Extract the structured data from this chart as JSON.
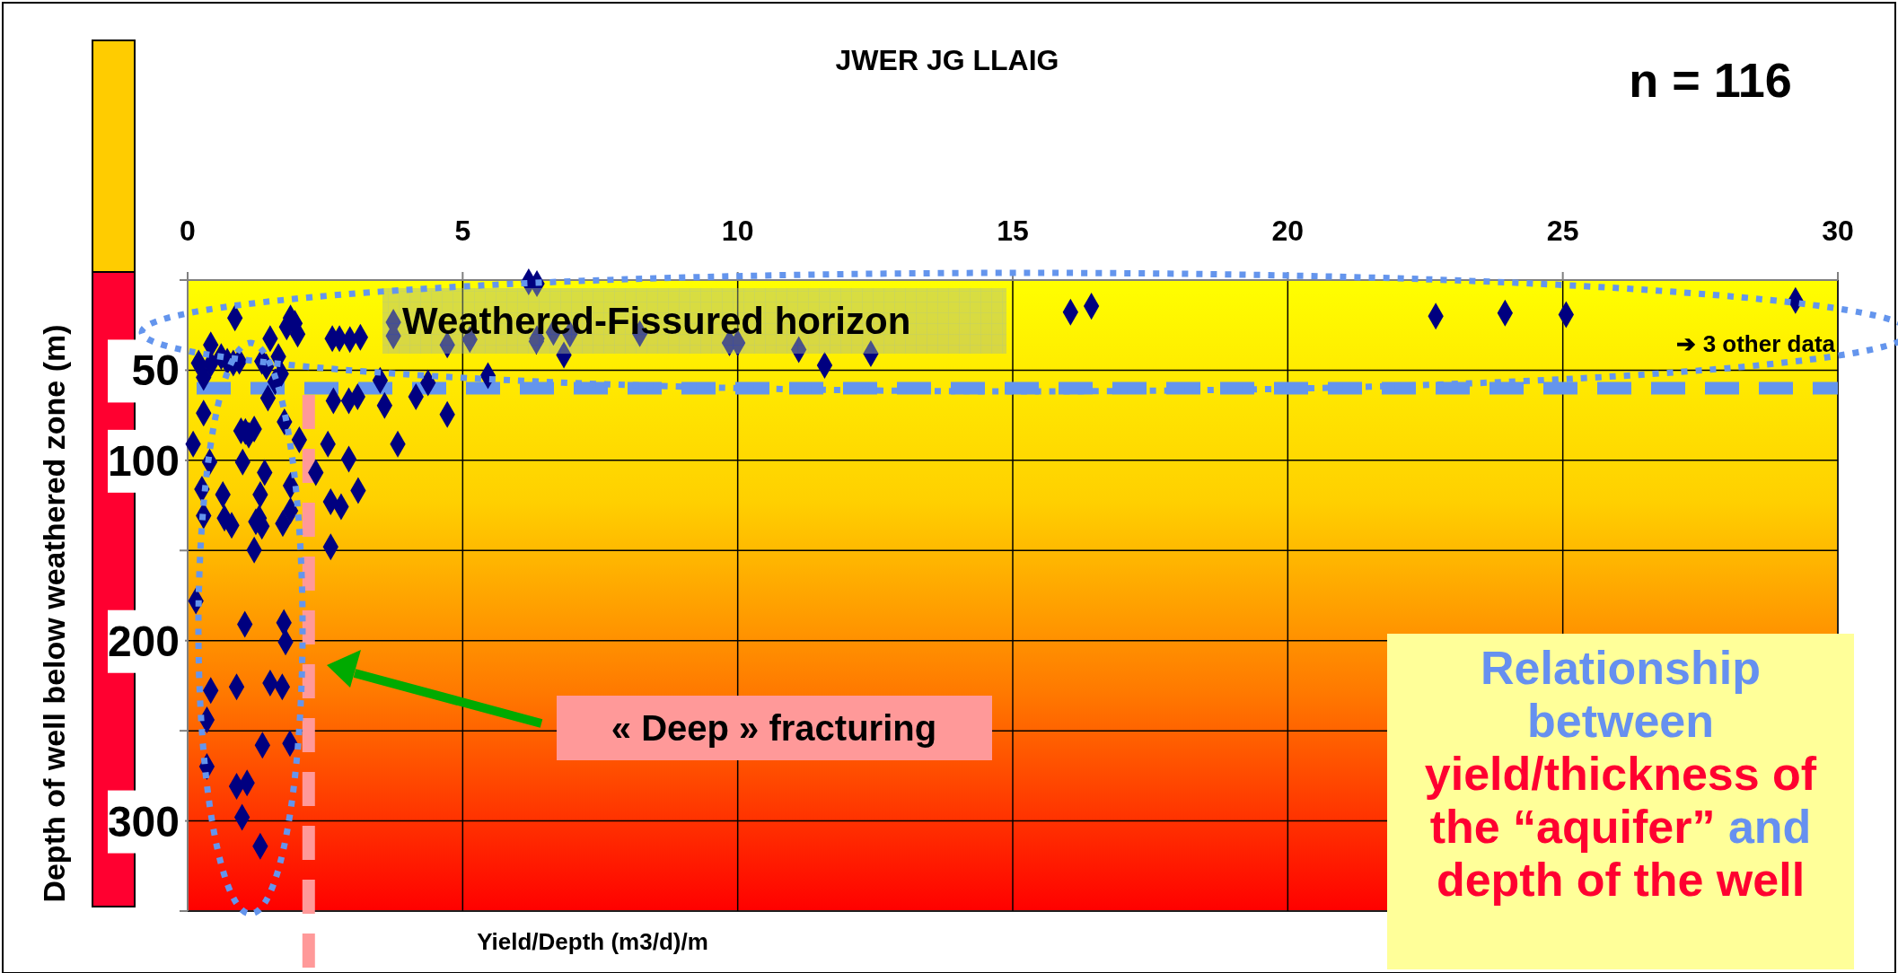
{
  "chart_data": {
    "type": "scatter",
    "title": "JWER JG LLAIG",
    "xlabel": "Yield/Depth (m3/d)/m",
    "ylabel": "Depth of well below weathered zone (m)",
    "xlim": [
      0,
      30
    ],
    "xticks": [
      0,
      5,
      10,
      15,
      20,
      25,
      30
    ],
    "ylim": [
      350,
      0
    ],
    "yticks": [
      {
        "value": 0,
        "label": null
      },
      50,
      100,
      {
        "value": 150,
        "label": null
      },
      200,
      {
        "value": 250,
        "label": null
      },
      300,
      {
        "value": 350,
        "label": null
      }
    ],
    "grid": true,
    "marker": "diamond",
    "series": [
      {
        "color": "#000080",
        "x": [
          0.86,
          1.87,
          1.95,
          2.0,
          1.8,
          1.5,
          0.42,
          2.63,
          2.76,
          2.95,
          3.14,
          3.74,
          3.74,
          4.72,
          5.13,
          6.2,
          6.35,
          6.35,
          6.65,
          6.95,
          6.84,
          0.2,
          0.42,
          0.61,
          0.72,
          0.83,
          0.94,
          1.35,
          1.43,
          1.65,
          1.7,
          0.29,
          1.59,
          3.5,
          4.37,
          5.46,
          1.46,
          2.65,
          2.93,
          3.09,
          3.58,
          4.15,
          4.72,
          0.29,
          1.76,
          0.97,
          1.11,
          1.21,
          1.05,
          0.1,
          2.03,
          2.55,
          3.82,
          0.4,
          1.0,
          2.93,
          1.4,
          2.33,
          1.87,
          0.26,
          0.64,
          1.32,
          3.1,
          2.6,
          2.79,
          0.29,
          0.67,
          0.8,
          1.24,
          1.35,
          1.3,
          1.73,
          1.87,
          1.21,
          2.6,
          0.15,
          1.04,
          1.75,
          1.78,
          0.42,
          0.89,
          1.5,
          1.72,
          0.35,
          1.36,
          1.86,
          0.35,
          0.89,
          1.08,
          0.99,
          1.32,
          16.05,
          16.43,
          22.69,
          23.95,
          25.06,
          29.23,
          11.58,
          12.42,
          11.11,
          10.0,
          9.85,
          8.22,
          6.34
        ],
        "values": [
          21,
          21,
          24,
          30,
          26,
          32.5,
          36,
          32.5,
          32.5,
          33,
          31.7,
          23.4,
          31,
          36,
          33,
          1,
          2,
          32.5,
          29,
          30,
          41.6,
          46,
          46.5,
          42.4,
          45,
          46,
          45,
          45,
          48,
          42.4,
          52,
          54,
          56.4,
          55.6,
          57,
          53,
          65.5,
          67,
          67,
          64.7,
          69.6,
          64.7,
          74.6,
          73.8,
          78.7,
          83.7,
          86,
          82.7,
          84,
          91,
          88.6,
          91,
          91,
          101,
          101,
          99.3,
          106.8,
          106.8,
          114,
          116,
          119,
          119,
          116.7,
          123,
          125.7,
          130.7,
          132,
          136,
          134,
          136.5,
          132,
          135,
          128,
          149.7,
          148,
          178,
          190.9,
          190,
          200.8,
          227.7,
          225.6,
          223.5,
          225.6,
          244,
          258,
          257,
          269.8,
          280.8,
          278.9,
          298,
          314,
          17.8,
          14.5,
          20,
          18.3,
          19.2,
          11.3,
          47.3,
          40.8,
          38.6,
          34.8,
          34.8,
          29.8,
          34
        ]
      }
    ],
    "ref_lines": [
      {
        "axis": "y",
        "value": 60,
        "color": "#6495ed",
        "line_style": "dashed"
      },
      {
        "axis": "x",
        "value": 2.2,
        "color": "#ff9999",
        "line_style": "dashed"
      }
    ],
    "annotations": [
      "Weathered-Fissured horizon",
      "n = 116",
      "➔ 3 other data",
      "« Deep » fracturing",
      "Relationship between",
      "yield/thickness of the “aquifer”",
      "and",
      "depth of the well"
    ]
  }
}
